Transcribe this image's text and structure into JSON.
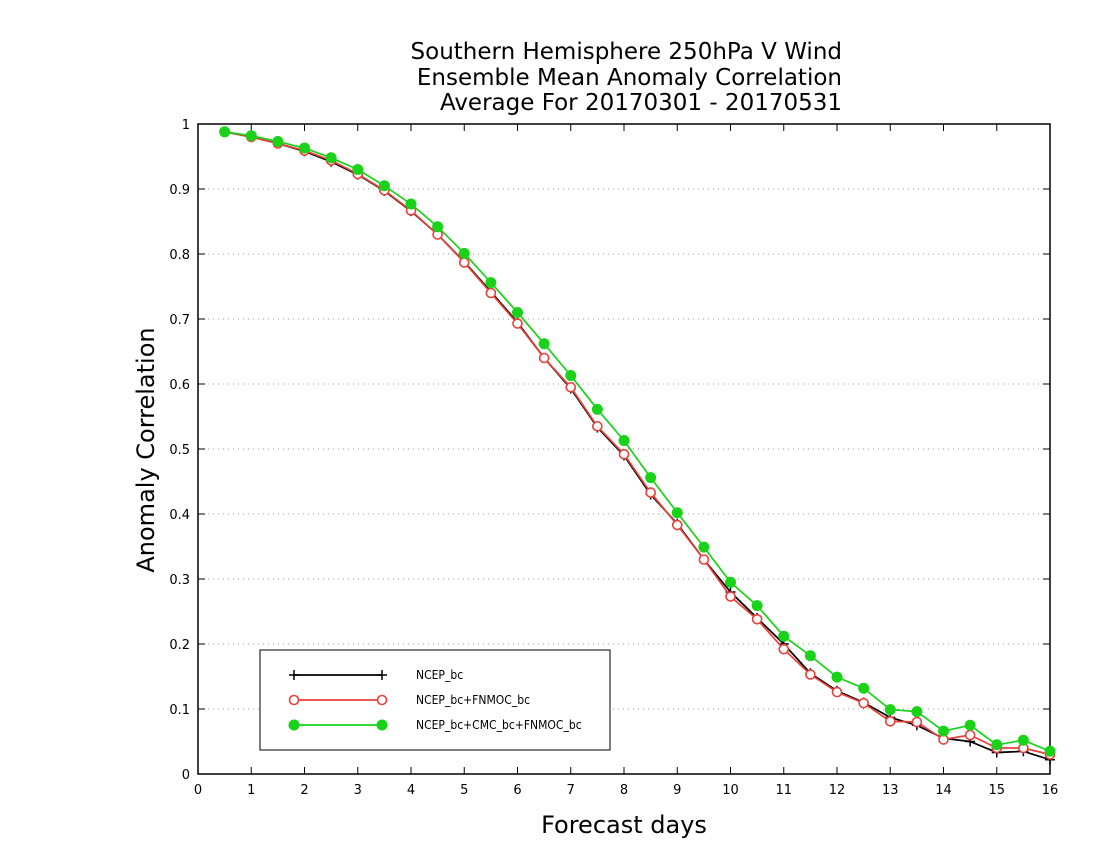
{
  "chart_data": {
    "type": "line",
    "title": [
      "Southern Hemisphere 250hPa V Wind",
      "Ensemble Mean Anomaly Correlation",
      "Average For 20170301 - 20170531"
    ],
    "xlabel": "Forecast days",
    "ylabel": "Anomaly Correlation",
    "xlim": [
      0,
      16
    ],
    "ylim": [
      0,
      1
    ],
    "xticks": [
      "0",
      "1",
      "2",
      "3",
      "4",
      "5",
      "6",
      "7",
      "8",
      "9",
      "10",
      "11",
      "12",
      "13",
      "14",
      "15",
      "16"
    ],
    "yticks": [
      "0",
      "0.1",
      "0.2",
      "0.3",
      "0.4",
      "0.5",
      "0.6",
      "0.7",
      "0.8",
      "0.9",
      "1"
    ],
    "grid": "horizontal dotted",
    "legend_position": "bottom-left",
    "x": [
      0.5,
      1,
      1.5,
      2,
      2.5,
      3,
      3.5,
      4,
      4.5,
      5,
      5.5,
      6,
      6.5,
      7,
      7.5,
      8,
      8.5,
      9,
      9.5,
      10,
      10.5,
      11,
      11.5,
      12,
      12.5,
      13,
      13.5,
      14,
      14.5,
      15,
      15.5,
      16
    ],
    "series": [
      {
        "name": "NCEP_bc",
        "color": "#000000",
        "marker": "plus",
        "values": [
          0.988,
          0.98,
          0.97,
          0.958,
          0.942,
          0.922,
          0.897,
          0.866,
          0.83,
          0.788,
          0.742,
          0.695,
          0.64,
          0.593,
          0.533,
          0.49,
          0.43,
          0.385,
          0.33,
          0.28,
          0.24,
          0.2,
          0.155,
          0.128,
          0.11,
          0.087,
          0.075,
          0.055,
          0.05,
          0.033,
          0.035,
          0.022
        ]
      },
      {
        "name": "NCEP_bc+FNMOC_bc",
        "color": "#e8413c",
        "marker": "open-circle",
        "values": [
          0.988,
          0.98,
          0.97,
          0.959,
          0.944,
          0.923,
          0.898,
          0.867,
          0.83,
          0.787,
          0.74,
          0.693,
          0.64,
          0.595,
          0.535,
          0.492,
          0.433,
          0.383,
          0.33,
          0.273,
          0.238,
          0.192,
          0.153,
          0.126,
          0.109,
          0.081,
          0.08,
          0.053,
          0.06,
          0.04,
          0.04,
          0.03
        ]
      },
      {
        "name": "NCEP_bc+CMC_bc+FNMOC_bc",
        "color": "#19d219",
        "marker": "filled-circle",
        "values": [
          0.988,
          0.982,
          0.973,
          0.963,
          0.948,
          0.93,
          0.905,
          0.877,
          0.842,
          0.801,
          0.756,
          0.71,
          0.662,
          0.613,
          0.561,
          0.513,
          0.456,
          0.402,
          0.349,
          0.295,
          0.259,
          0.212,
          0.182,
          0.149,
          0.132,
          0.099,
          0.096,
          0.066,
          0.075,
          0.045,
          0.052,
          0.035
        ]
      }
    ]
  }
}
